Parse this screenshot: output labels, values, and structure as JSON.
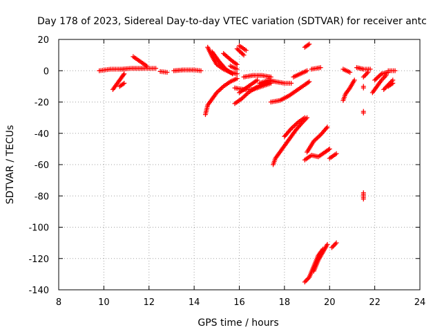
{
  "chart_data": {
    "type": "scatter",
    "title": "Day 178 of 2023, Sidereal Day-to-day VTEC variation (SDTVAR) for receiver antc",
    "xlabel": "GPS time / hours",
    "ylabel": "SDTVAR / TECUs",
    "xlim": [
      8,
      24
    ],
    "ylim": [
      -140,
      20
    ],
    "xticks": [
      "8",
      "10",
      "12",
      "14",
      "16",
      "18",
      "20",
      "22",
      "24"
    ],
    "yticks": [
      "20",
      "0",
      "-20",
      "-40",
      "-60",
      "-80",
      "-100",
      "-120",
      "-140"
    ],
    "grid": true,
    "marker": "+",
    "color": "#ff0000",
    "series": [
      {
        "segments": [
          [
            [
              9.8,
              0
            ],
            [
              10.3,
              1
            ],
            [
              10.8,
              1
            ]
          ],
          [
            [
              10.8,
              1
            ],
            [
              11.2,
              1.5
            ],
            [
              11.8,
              1.5
            ],
            [
              12.3,
              1.5
            ]
          ],
          [
            [
              12.5,
              -0.5
            ],
            [
              12.8,
              -1
            ]
          ],
          [
            [
              13.1,
              0
            ],
            [
              13.5,
              0.5
            ],
            [
              14.0,
              0.5
            ],
            [
              14.3,
              0
            ]
          ],
          [
            [
              10.4,
              -12
            ],
            [
              10.6,
              -8
            ],
            [
              10.8,
              -4
            ],
            [
              10.9,
              -2
            ]
          ],
          [
            [
              10.7,
              -10
            ],
            [
              10.9,
              -8
            ]
          ],
          [
            [
              11.3,
              9
            ],
            [
              11.6,
              6
            ],
            [
              11.9,
              3
            ]
          ],
          [
            [
              14.6,
              15
            ],
            [
              14.8,
              9
            ],
            [
              15.0,
              4
            ],
            [
              15.3,
              1
            ],
            [
              15.6,
              -1
            ],
            [
              15.9,
              -2
            ]
          ],
          [
            [
              14.8,
              12
            ],
            [
              15.1,
              6
            ],
            [
              15.4,
              1
            ],
            [
              15.7,
              -2
            ]
          ],
          [
            [
              14.5,
              -28
            ],
            [
              14.6,
              -22
            ],
            [
              14.8,
              -18
            ],
            [
              15.0,
              -14
            ],
            [
              15.3,
              -10
            ],
            [
              15.6,
              -7
            ],
            [
              15.9,
              -5
            ]
          ],
          [
            [
              15.3,
              11
            ],
            [
              15.7,
              6
            ],
            [
              15.9,
              4
            ]
          ],
          [
            [
              15.9,
              14
            ],
            [
              16.2,
              10
            ]
          ],
          [
            [
              15.6,
              3
            ],
            [
              15.9,
              1
            ]
          ],
          [
            [
              15.8,
              -21
            ],
            [
              16.1,
              -18
            ],
            [
              16.4,
              -14
            ],
            [
              16.7,
              -11
            ],
            [
              17.0,
              -9
            ],
            [
              17.3,
              -7
            ]
          ],
          [
            [
              16.0,
              -14
            ],
            [
              16.4,
              -10
            ],
            [
              16.8,
              -6
            ]
          ],
          [
            [
              16.0,
              16
            ],
            [
              16.3,
              13
            ]
          ],
          [
            [
              16.2,
              -4
            ],
            [
              16.6,
              -3
            ],
            [
              17.0,
              -3
            ],
            [
              17.4,
              -4
            ]
          ],
          [
            [
              15.8,
              -11
            ],
            [
              16.2,
              -12
            ],
            [
              16.6,
              -12
            ],
            [
              17.0,
              -10
            ],
            [
              17.4,
              -8
            ]
          ],
          [
            [
              16.9,
              -8
            ],
            [
              17.3,
              -6
            ],
            [
              17.6,
              -7
            ],
            [
              18.0,
              -8
            ],
            [
              18.3,
              -8
            ]
          ],
          [
            [
              17.4,
              -20
            ],
            [
              17.8,
              -19
            ],
            [
              18.2,
              -16
            ],
            [
              18.6,
              -12
            ],
            [
              18.9,
              -9
            ],
            [
              19.1,
              -7
            ]
          ],
          [
            [
              18.4,
              -4
            ],
            [
              18.7,
              -2
            ],
            [
              19.0,
              0
            ]
          ],
          [
            [
              18.9,
              15
            ],
            [
              19.1,
              17
            ]
          ],
          [
            [
              19.2,
              1
            ],
            [
              19.6,
              2
            ]
          ],
          [
            [
              17.5,
              -60
            ],
            [
              17.6,
              -56
            ],
            [
              17.9,
              -50
            ],
            [
              18.2,
              -44
            ],
            [
              18.5,
              -38
            ],
            [
              18.8,
              -33
            ],
            [
              19.0,
              -30
            ]
          ],
          [
            [
              18.0,
              -42
            ],
            [
              18.3,
              -37
            ],
            [
              18.6,
              -33
            ],
            [
              18.9,
              -30
            ]
          ],
          [
            [
              18.9,
              -57
            ],
            [
              19.2,
              -54
            ],
            [
              19.5,
              -55
            ],
            [
              19.8,
              -52
            ],
            [
              20.0,
              -50
            ]
          ],
          [
            [
              19.0,
              -52
            ],
            [
              19.3,
              -45
            ],
            [
              19.6,
              -41
            ],
            [
              19.9,
              -36
            ]
          ],
          [
            [
              20.0,
              -56
            ],
            [
              20.3,
              -53
            ]
          ],
          [
            [
              18.9,
              -135
            ],
            [
              19.1,
              -132
            ],
            [
              19.3,
              -125
            ],
            [
              19.5,
              -118
            ],
            [
              19.7,
              -114
            ]
          ],
          [
            [
              19.3,
              -128
            ],
            [
              19.5,
              -121
            ],
            [
              19.7,
              -116
            ],
            [
              19.9,
              -111
            ]
          ],
          [
            [
              20.1,
              -113
            ],
            [
              20.3,
              -110
            ]
          ],
          [
            [
              20.6,
              1
            ],
            [
              20.9,
              -1
            ]
          ],
          [
            [
              20.6,
              -19
            ],
            [
              20.7,
              -15
            ],
            [
              20.9,
              -11
            ],
            [
              21.1,
              -6
            ]
          ],
          [
            [
              21.2,
              2
            ],
            [
              21.5,
              1
            ],
            [
              21.8,
              1
            ]
          ],
          [
            [
              21.5,
              -4
            ],
            [
              21.7,
              -1
            ]
          ],
          [
            [
              21.5,
              -10
            ]
          ],
          [
            [
              21.5,
              -26
            ]
          ],
          [
            [
              21.5,
              -78
            ],
            [
              21.5,
              -82
            ]
          ],
          [
            [
              21.9,
              -14
            ],
            [
              22.1,
              -10
            ],
            [
              22.3,
              -6
            ],
            [
              22.5,
              -3
            ]
          ],
          [
            [
              22.0,
              -6
            ],
            [
              22.3,
              -2
            ],
            [
              22.6,
              -1
            ]
          ],
          [
            [
              22.6,
              0
            ],
            [
              22.9,
              0
            ]
          ],
          [
            [
              22.4,
              -12
            ],
            [
              22.6,
              -9
            ],
            [
              22.8,
              -6
            ]
          ],
          [
            [
              22.6,
              -10
            ],
            [
              22.8,
              -8
            ]
          ]
        ]
      }
    ]
  }
}
